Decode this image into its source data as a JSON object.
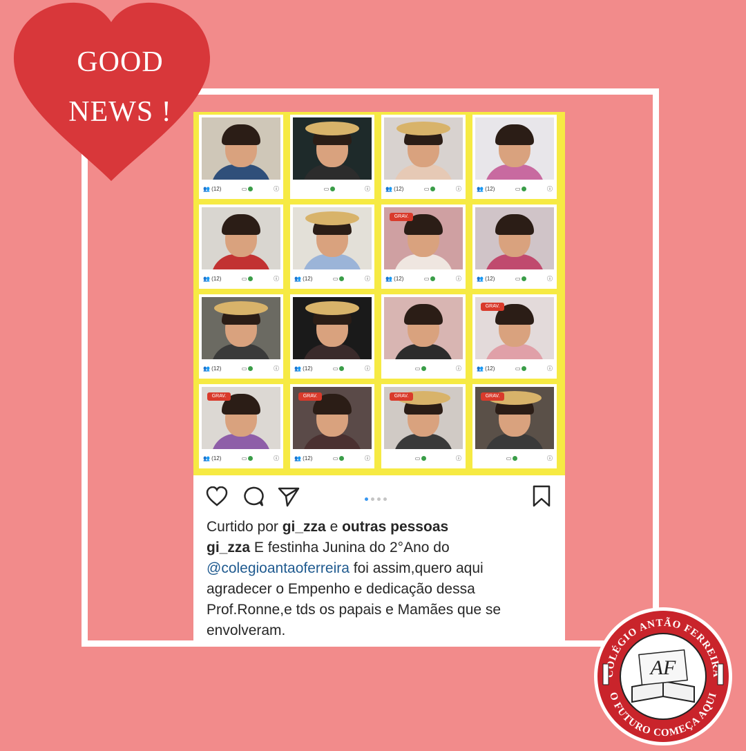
{
  "badge": {
    "line1": "GOOD",
    "line2": "NEWS !"
  },
  "photo_tiles": [
    {
      "label": "(12)",
      "rec": ""
    },
    {
      "label": "",
      "rec": ""
    },
    {
      "label": "(12)",
      "rec": ""
    },
    {
      "label": "(12)",
      "rec": ""
    },
    {
      "label": "(12)",
      "rec": ""
    },
    {
      "label": "(12)",
      "rec": ""
    },
    {
      "label": "(12)",
      "rec": "GRAV."
    },
    {
      "label": "(12)",
      "rec": ""
    },
    {
      "label": "(12)",
      "rec": ""
    },
    {
      "label": "(12)",
      "rec": ""
    },
    {
      "label": "",
      "rec": ""
    },
    {
      "label": "(12)",
      "rec": "GRAV."
    },
    {
      "label": "(12)",
      "rec": "GRAV."
    },
    {
      "label": "(12)",
      "rec": "GRAV."
    },
    {
      "label": "",
      "rec": "GRAV."
    },
    {
      "label": "",
      "rec": "GRAV."
    }
  ],
  "post": {
    "likes_prefix": "Curtido por ",
    "likes_user": "gi_zza",
    "likes_middle": " e ",
    "likes_others": "outras pessoas",
    "author": "gi_zza",
    "caption_line1": " E festinha Junina do 2°Ano do",
    "mention": "@colegioantaoferreira",
    "caption_line2": " foi assim,quero aqui",
    "caption_line3": "agradecer o Empenho e dedicação dessa",
    "caption_line4": "Prof.Ronne,e tds os papais e Mamães que se",
    "caption_line5": "envolveram.",
    "carousel_dots": 4,
    "carousel_active": 1
  },
  "logo": {
    "top_text": "COLÉGIO ANTÃO FERREIRA",
    "bottom_text": "O FUTURO COMEÇA AQUI",
    "monogram": "AF"
  },
  "colors": {
    "background": "#f28b8b",
    "heart": "#d8373a",
    "photo_border": "#f6ea43",
    "mention": "#1f5a8f"
  }
}
